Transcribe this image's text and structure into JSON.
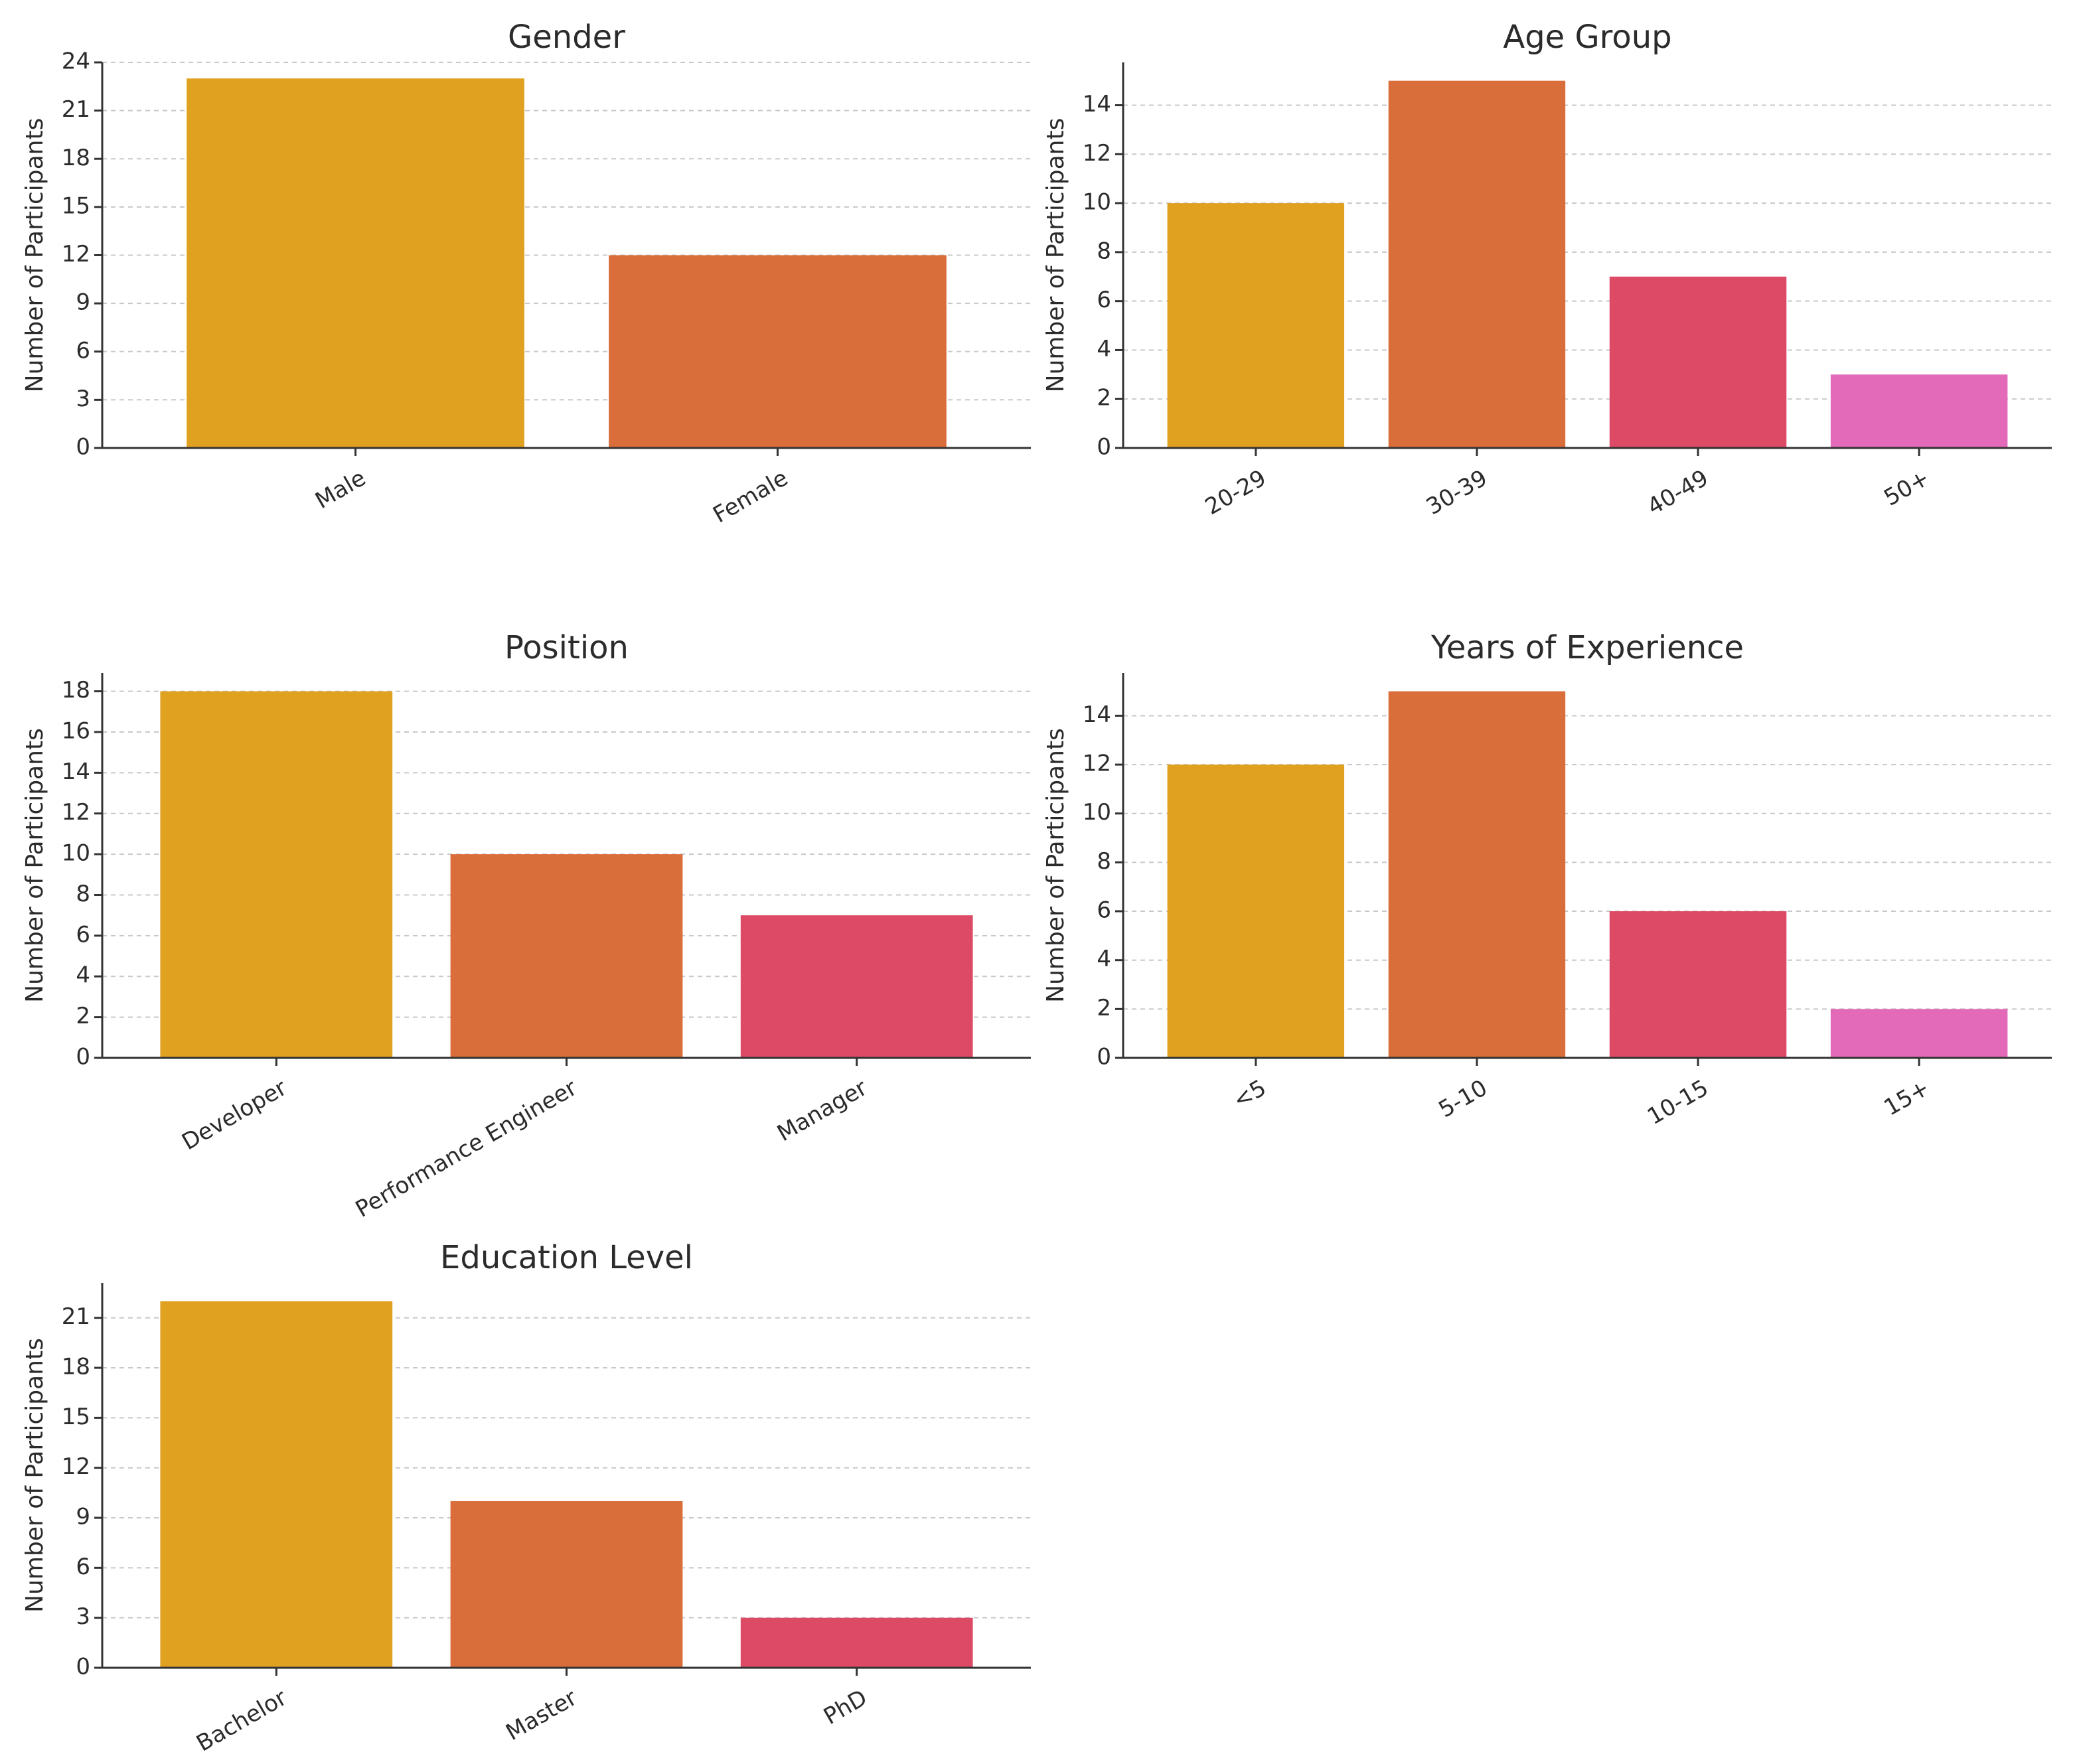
{
  "chart_data": [
    {
      "type": "bar",
      "title": "Gender",
      "ylabel": "Number of Participants",
      "xlabel": "",
      "categories": [
        "Male",
        "Female"
      ],
      "values": [
        23,
        12
      ],
      "ylim": [
        0,
        24
      ],
      "yticks": [
        0,
        3,
        6,
        9,
        12,
        15,
        18,
        21,
        24
      ],
      "colors": [
        "#dfa11f",
        "#d96e3a"
      ],
      "grid": true
    },
    {
      "type": "bar",
      "title": "Age Group",
      "ylabel": "Number of Participants",
      "xlabel": "",
      "categories": [
        "20-29",
        "30-39",
        "40-49",
        "50+"
      ],
      "values": [
        10,
        15,
        7,
        3
      ],
      "ylim": [
        0,
        15.75
      ],
      "yticks": [
        0,
        2,
        4,
        6,
        8,
        10,
        12,
        14
      ],
      "colors": [
        "#dfa11f",
        "#d96e3a",
        "#dc4a66",
        "#e26ab8"
      ],
      "grid": true
    },
    {
      "type": "bar",
      "title": "Position",
      "ylabel": "Number of Participants",
      "xlabel": "",
      "categories": [
        "Developer",
        "Performance Engineer",
        "Manager"
      ],
      "values": [
        18,
        10,
        7
      ],
      "ylim": [
        0,
        18.9
      ],
      "yticks": [
        0,
        2,
        4,
        6,
        8,
        10,
        12,
        14,
        16,
        18
      ],
      "colors": [
        "#dfa11f",
        "#d96e3a",
        "#dc4a66"
      ],
      "grid": true
    },
    {
      "type": "bar",
      "title": "Years of Experience",
      "ylabel": "Number of Participants",
      "xlabel": "",
      "categories": [
        "<5",
        "5-10",
        "10-15",
        "15+"
      ],
      "values": [
        12,
        15,
        6,
        2
      ],
      "ylim": [
        0,
        15.75
      ],
      "yticks": [
        0,
        2,
        4,
        6,
        8,
        10,
        12,
        14
      ],
      "colors": [
        "#dfa11f",
        "#d96e3a",
        "#dc4a66",
        "#e26ab8"
      ],
      "grid": true
    },
    {
      "type": "bar",
      "title": "Education Level",
      "ylabel": "Number of Participants",
      "xlabel": "",
      "categories": [
        "Bachelor",
        "Master",
        "PhD"
      ],
      "values": [
        22,
        10,
        3
      ],
      "ylim": [
        0,
        23.1
      ],
      "yticks": [
        0,
        3,
        6,
        9,
        12,
        15,
        18,
        21
      ],
      "colors": [
        "#dfa11f",
        "#d96e3a",
        "#dc4a66"
      ],
      "grid": true
    }
  ]
}
